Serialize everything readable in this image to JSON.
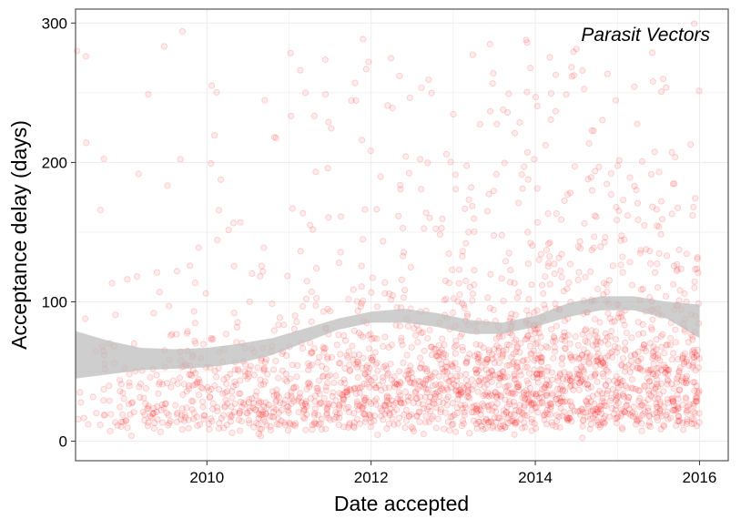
{
  "chart_data": {
    "type": "scatter",
    "xlabel": "Date accepted",
    "ylabel": "Acceptance delay (days)",
    "annotation": "Parasit Vectors",
    "xlim": [
      2008.4,
      2016.35
    ],
    "ylim": [
      -14,
      310
    ],
    "x_ticks": [
      2010,
      2012,
      2014,
      2016
    ],
    "x_tick_labels": [
      "2010",
      "2012",
      "2014",
      "2016"
    ],
    "y_ticks": [
      0,
      100,
      200,
      300
    ],
    "y_tick_labels": [
      "0",
      "100",
      "200",
      "300"
    ],
    "grid": true,
    "point_color": "#ff0000",
    "band_color": "#bdbdbd",
    "smooth": {
      "x": [
        2008.4,
        2008.8,
        2009.2,
        2009.6,
        2010.0,
        2010.4,
        2010.8,
        2011.2,
        2011.6,
        2012.0,
        2012.4,
        2012.8,
        2013.2,
        2013.6,
        2014.0,
        2014.4,
        2014.8,
        2015.2,
        2015.6,
        2016.0
      ],
      "fit": [
        62,
        60,
        59,
        59,
        60,
        63,
        68,
        76,
        84,
        89,
        90,
        87,
        82,
        81,
        86,
        94,
        99,
        99,
        94,
        86
      ],
      "lower": [
        45,
        48,
        51,
        52,
        53,
        56,
        62,
        71,
        80,
        85,
        85,
        82,
        77,
        77,
        82,
        89,
        94,
        94,
        88,
        74
      ],
      "upper": [
        79,
        72,
        67,
        66,
        67,
        70,
        74,
        81,
        88,
        93,
        95,
        92,
        87,
        85,
        90,
        99,
        104,
        104,
        100,
        98
      ]
    }
  }
}
